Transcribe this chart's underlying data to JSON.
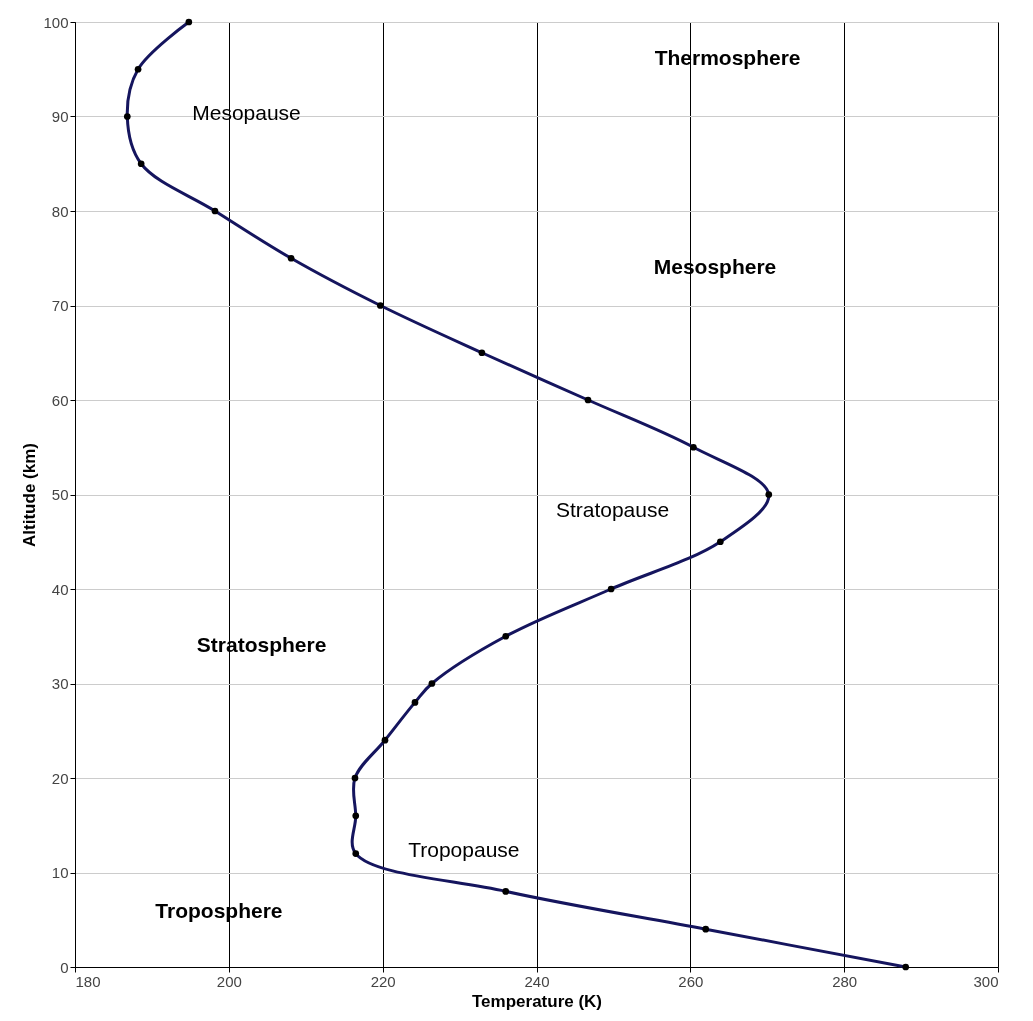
{
  "chart_data": {
    "type": "line",
    "xlabel": "Temperature (K)",
    "ylabel": "Altitude (km)",
    "xlim": [
      180,
      300
    ],
    "xticks": [
      180,
      200,
      220,
      240,
      260,
      280,
      300
    ],
    "ylim": [
      0,
      100
    ],
    "yticks": [
      0,
      10,
      20,
      30,
      40,
      50,
      60,
      70,
      80,
      90,
      100
    ],
    "grid": true,
    "marker": "circle",
    "line_style": "solid",
    "series": [
      {
        "color": "#15155e",
        "x": [
          288,
          262,
          236,
          216.5,
          216.5,
          216.4,
          220.3,
          224.2,
          226.4,
          236,
          249.7,
          263.9,
          270.2,
          260.4,
          246.7,
          232.9,
          219.7,
          208.1,
          198.2,
          188.6,
          186.8,
          188.2,
          194.8
        ],
        "values": [
          0,
          4,
          8,
          12,
          16,
          20,
          24,
          28,
          30,
          35,
          40,
          45,
          50,
          55,
          60,
          65,
          70,
          75,
          80,
          85,
          90,
          95,
          100
        ]
      }
    ],
    "annotations": [
      "Thermosphere",
      "Mesopause",
      "Mesosphere",
      "Stratopause",
      "Stratosphere",
      "Tropopause",
      "Troposphere"
    ]
  }
}
